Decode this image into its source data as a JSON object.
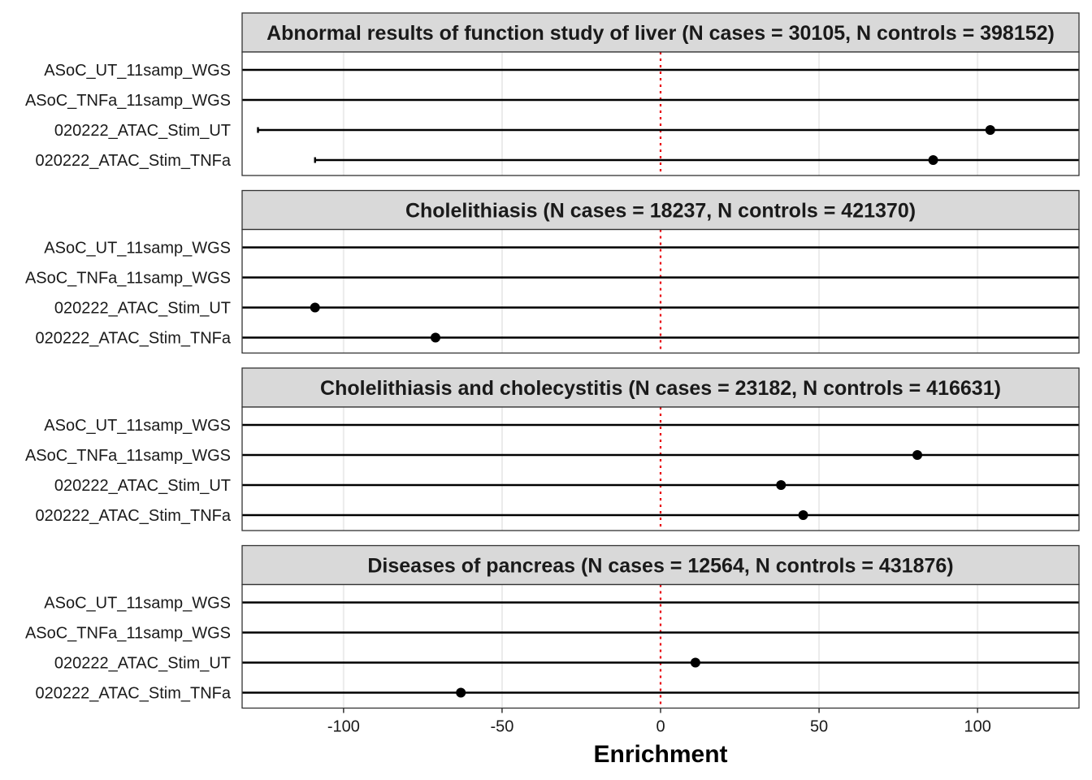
{
  "chart_data": {
    "type": "scatter",
    "subtype": "faceted-dot-errorbar",
    "xlabel": "Enrichment",
    "xlim": [
      -132,
      132
    ],
    "x_ticks": [
      -100,
      -50,
      0,
      50,
      100
    ],
    "x_tick_labels": [
      "-100",
      "-50",
      "0",
      "50",
      "100"
    ],
    "reference_line": {
      "x": 0,
      "style": "dotted",
      "color": "#e8000b"
    },
    "grid": true,
    "categories": [
      "ASoC_UT_11samp_WGS",
      "ASoC_TNFa_11samp_WGS",
      "020222_ATAC_Stim_UT",
      "020222_ATAC_Stim_TNFa"
    ],
    "facets": [
      {
        "title": "Abnormal results of function study of liver (N cases = 30105, N controls = 398152)",
        "points": [
          {
            "category": "ASoC_UT_11samp_WGS",
            "value": null,
            "lower": null,
            "upper": null
          },
          {
            "category": "ASoC_TNFa_11samp_WGS",
            "value": null,
            "lower": null,
            "upper": null
          },
          {
            "category": "020222_ATAC_Stim_UT",
            "value": 104,
            "lower": -127,
            "upper": 300
          },
          {
            "category": "020222_ATAC_Stim_TNFa",
            "value": 86,
            "lower": -109,
            "upper": 300
          }
        ]
      },
      {
        "title": "Cholelithiasis (N cases = 18237, N controls = 421370)",
        "points": [
          {
            "category": "ASoC_UT_11samp_WGS",
            "value": null,
            "lower": null,
            "upper": null
          },
          {
            "category": "ASoC_TNFa_11samp_WGS",
            "value": null,
            "lower": null,
            "upper": null
          },
          {
            "category": "020222_ATAC_Stim_UT",
            "value": -109,
            "lower": -300,
            "upper": 300
          },
          {
            "category": "020222_ATAC_Stim_TNFa",
            "value": -71,
            "lower": -300,
            "upper": 300
          }
        ]
      },
      {
        "title": "Cholelithiasis and cholecystitis (N cases = 23182, N controls = 416631)",
        "points": [
          {
            "category": "ASoC_UT_11samp_WGS",
            "value": null,
            "lower": null,
            "upper": null
          },
          {
            "category": "ASoC_TNFa_11samp_WGS",
            "value": 81,
            "lower": -300,
            "upper": 300
          },
          {
            "category": "020222_ATAC_Stim_UT",
            "value": 38,
            "lower": -300,
            "upper": 300
          },
          {
            "category": "020222_ATAC_Stim_TNFa",
            "value": 45,
            "lower": -300,
            "upper": 300
          }
        ]
      },
      {
        "title": "Diseases of pancreas (N cases = 12564, N controls = 431876)",
        "points": [
          {
            "category": "ASoC_UT_11samp_WGS",
            "value": null,
            "lower": null,
            "upper": null
          },
          {
            "category": "ASoC_TNFa_11samp_WGS",
            "value": null,
            "lower": null,
            "upper": null
          },
          {
            "category": "020222_ATAC_Stim_UT",
            "value": 11,
            "lower": -300,
            "upper": 300
          },
          {
            "category": "020222_ATAC_Stim_TNFa",
            "value": -63,
            "lower": -300,
            "upper": 300
          }
        ]
      }
    ],
    "colors": {
      "point": "#000000",
      "errorbar": "#000000",
      "strip_fill": "#d9d9d9",
      "grid": "#ebebeb",
      "reference_line": "#e8000b"
    }
  }
}
